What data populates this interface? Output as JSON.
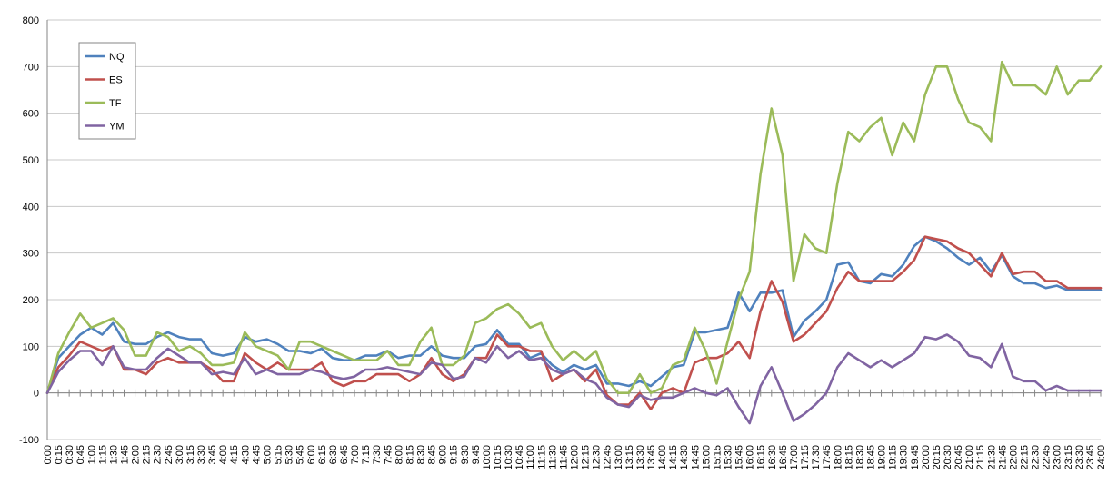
{
  "chart_data": {
    "type": "line",
    "title": "",
    "xlabel": "",
    "ylabel": "",
    "ylim": [
      -100,
      800
    ],
    "yticks": [
      -100,
      0,
      100,
      200,
      300,
      400,
      500,
      600,
      700,
      800
    ],
    "grid": "horizontal",
    "legend_placement": "top-left",
    "x": [
      "0:00",
      "0:15",
      "0:30",
      "0:45",
      "1:00",
      "1:15",
      "1:30",
      "1:45",
      "2:00",
      "2:15",
      "2:30",
      "2:45",
      "3:00",
      "3:15",
      "3:30",
      "3:45",
      "4:00",
      "4:15",
      "4:30",
      "4:45",
      "5:00",
      "5:15",
      "5:30",
      "5:45",
      "6:00",
      "6:15",
      "6:30",
      "6:45",
      "7:00",
      "7:15",
      "7:30",
      "7:45",
      "8:00",
      "8:15",
      "8:30",
      "8:45",
      "9:00",
      "9:15",
      "9:30",
      "9:45",
      "10:00",
      "10:15",
      "10:30",
      "10:45",
      "11:00",
      "11:15",
      "11:30",
      "11:45",
      "12:00",
      "12:15",
      "12:30",
      "12:45",
      "13:00",
      "13:15",
      "13:30",
      "13:45",
      "14:00",
      "14:15",
      "14:30",
      "14:45",
      "15:00",
      "15:15",
      "15:30",
      "15:45",
      "16:00",
      "16:15",
      "16:30",
      "16:45",
      "17:00",
      "17:15",
      "17:30",
      "17:45",
      "18:00",
      "18:15",
      "18:30",
      "18:45",
      "19:00",
      "19:15",
      "19:30",
      "19:45",
      "20:00",
      "20:15",
      "20:30",
      "20:45",
      "21:00",
      "21:15",
      "21:30",
      "21:45",
      "22:00",
      "22:15",
      "22:30",
      "22:45",
      "23:00",
      "23:15",
      "23:30",
      "23:45",
      "24:00"
    ],
    "series": [
      {
        "name": "NQ",
        "color": "#4f81bd",
        "values": [
          0,
          75,
          100,
          125,
          140,
          125,
          150,
          110,
          105,
          105,
          120,
          130,
          120,
          115,
          115,
          85,
          80,
          85,
          120,
          110,
          115,
          105,
          90,
          90,
          85,
          95,
          75,
          70,
          70,
          80,
          80,
          90,
          75,
          80,
          80,
          100,
          80,
          75,
          75,
          100,
          105,
          135,
          105,
          105,
          75,
          85,
          60,
          45,
          60,
          50,
          60,
          20,
          20,
          15,
          25,
          15,
          35,
          55,
          60,
          130,
          130,
          135,
          140,
          215,
          175,
          215,
          215,
          220,
          120,
          155,
          175,
          200,
          275,
          280,
          240,
          235,
          255,
          250,
          275,
          315,
          335,
          325,
          310,
          290,
          275,
          290,
          260,
          295,
          250,
          235,
          235,
          225,
          230,
          220,
          220,
          220,
          220
        ]
      },
      {
        "name": "ES",
        "color": "#c0504d",
        "values": [
          0,
          55,
          80,
          110,
          100,
          90,
          100,
          50,
          50,
          40,
          65,
          75,
          65,
          65,
          65,
          50,
          25,
          25,
          85,
          65,
          50,
          65,
          50,
          50,
          50,
          65,
          25,
          15,
          25,
          25,
          40,
          40,
          40,
          25,
          40,
          75,
          40,
          25,
          40,
          75,
          75,
          125,
          100,
          100,
          90,
          90,
          25,
          40,
          50,
          25,
          50,
          -5,
          -25,
          -25,
          0,
          -35,
          0,
          10,
          0,
          65,
          75,
          75,
          85,
          110,
          75,
          175,
          240,
          195,
          110,
          125,
          150,
          175,
          225,
          260,
          240,
          240,
          240,
          240,
          260,
          285,
          335,
          330,
          325,
          310,
          300,
          275,
          250,
          300,
          255,
          260,
          260,
          240,
          240,
          225,
          225,
          225,
          225
        ]
      },
      {
        "name": "TF",
        "color": "#9bbb59",
        "values": [
          0,
          85,
          130,
          170,
          140,
          150,
          160,
          135,
          80,
          80,
          130,
          120,
          90,
          100,
          85,
          60,
          60,
          65,
          130,
          100,
          90,
          80,
          50,
          110,
          110,
          100,
          90,
          80,
          70,
          70,
          70,
          90,
          60,
          60,
          110,
          140,
          60,
          60,
          80,
          150,
          160,
          180,
          190,
          170,
          140,
          150,
          100,
          70,
          90,
          70,
          90,
          30,
          0,
          0,
          40,
          0,
          10,
          60,
          70,
          140,
          90,
          20,
          110,
          200,
          260,
          470,
          610,
          510,
          240,
          340,
          310,
          300,
          450,
          560,
          540,
          570,
          590,
          510,
          580,
          540,
          640,
          700,
          700,
          630,
          580,
          570,
          540,
          710,
          660,
          660,
          660,
          640,
          700,
          640,
          670,
          670,
          700
        ]
      },
      {
        "name": "YM",
        "color": "#8064a2",
        "values": [
          0,
          45,
          70,
          90,
          90,
          60,
          100,
          55,
          50,
          50,
          75,
          95,
          80,
          65,
          65,
          40,
          45,
          40,
          75,
          40,
          50,
          40,
          40,
          40,
          50,
          45,
          35,
          30,
          35,
          50,
          50,
          55,
          50,
          45,
          40,
          65,
          60,
          30,
          35,
          75,
          65,
          100,
          75,
          90,
          70,
          75,
          50,
          40,
          50,
          30,
          20,
          -10,
          -25,
          -30,
          -5,
          -15,
          -10,
          -10,
          0,
          10,
          0,
          -5,
          10,
          -30,
          -65,
          15,
          55,
          0,
          -60,
          -45,
          -25,
          0,
          55,
          85,
          70,
          55,
          70,
          55,
          70,
          85,
          120,
          115,
          125,
          110,
          80,
          75,
          55,
          105,
          35,
          25,
          25,
          5,
          15,
          5,
          5,
          5,
          5
        ]
      }
    ]
  }
}
